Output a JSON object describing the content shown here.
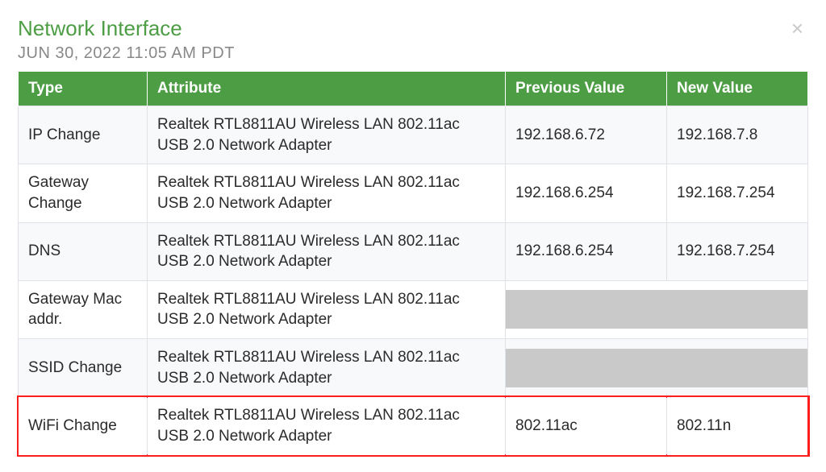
{
  "header": {
    "title": "Network Interface",
    "timestamp": "JUN 30, 2022 11:05 AM PDT",
    "title_color": "#4d9d45",
    "timestamp_color": "#888888",
    "close_glyph": "×",
    "close_color": "#c9c9c9"
  },
  "table": {
    "header_bg": "#4d9d45",
    "header_fg": "#ffffff",
    "border_color": "#dfe3e8",
    "row_alt_bg": "#f7f9fb",
    "row_bg": "#ffffff",
    "cell_fg": "#2b2b2b",
    "redact_bg": "#c9c9c9",
    "highlight_border": "#ff1e1e",
    "columns": [
      {
        "key": "type",
        "label": "Type"
      },
      {
        "key": "attribute",
        "label": "Attribute"
      },
      {
        "key": "prev",
        "label": "Previous Value"
      },
      {
        "key": "new",
        "label": "New Value"
      }
    ],
    "rows": [
      {
        "type": "IP Change",
        "attribute": "Realtek RTL8811AU Wireless LAN 802.11ac USB 2.0 Network Adapter",
        "prev": "192.168.6.72",
        "new": "192.168.7.8",
        "redacted": false,
        "highlight": false
      },
      {
        "type": "Gateway Change",
        "attribute": "Realtek RTL8811AU Wireless LAN 802.11ac USB 2.0 Network Adapter",
        "prev": "192.168.6.254",
        "new": "192.168.7.254",
        "redacted": false,
        "highlight": false
      },
      {
        "type": "DNS",
        "attribute": "Realtek RTL8811AU Wireless LAN 802.11ac USB 2.0 Network Adapter",
        "prev": "192.168.6.254",
        "new": "192.168.7.254",
        "redacted": false,
        "highlight": false
      },
      {
        "type": "Gateway Mac addr.",
        "attribute": "Realtek RTL8811AU Wireless LAN 802.11ac USB 2.0 Network Adapter",
        "prev": "",
        "new": "",
        "redacted": true,
        "highlight": false
      },
      {
        "type": "SSID Change",
        "attribute": "Realtek RTL8811AU Wireless LAN 802.11ac USB 2.0 Network Adapter",
        "prev": "",
        "new": "",
        "redacted": true,
        "highlight": false
      },
      {
        "type": "WiFi Change",
        "attribute": "Realtek RTL8811AU Wireless LAN 802.11ac USB 2.0 Network Adapter",
        "prev": "802.11ac",
        "new": "802.11n",
        "redacted": false,
        "highlight": true
      }
    ]
  }
}
